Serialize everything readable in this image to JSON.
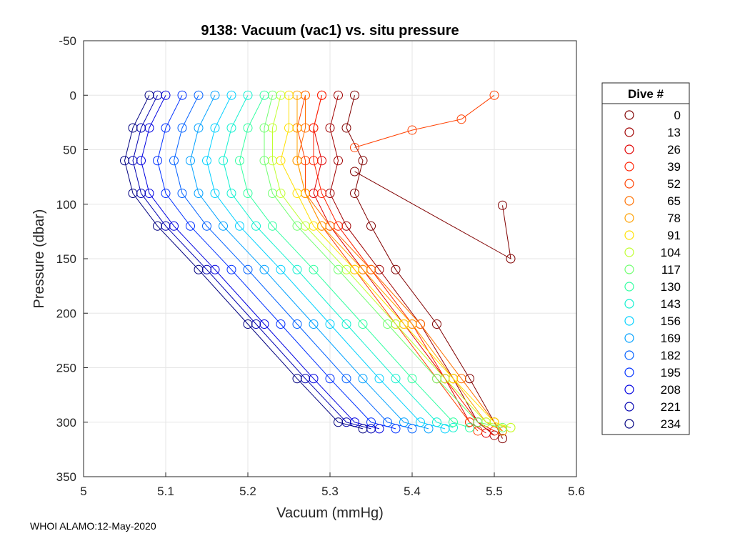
{
  "footer": "WHOI ALAMO:12-May-2020",
  "chart_data": {
    "type": "line",
    "title": "9138: Vacuum (vac1) vs. situ pressure",
    "xlabel": "Vacuum (mmHg)",
    "ylabel": "Pressure (dbar)",
    "xlim": [
      5,
      5.6
    ],
    "ylim": [
      -50,
      350
    ],
    "y_reversed": true,
    "grid": true,
    "marker": "open-circle",
    "xticks": [
      "5",
      "5.1",
      "5.2",
      "5.3",
      "5.4",
      "5.5",
      "5.6"
    ],
    "yticks": [
      "-50",
      "0",
      "50",
      "100",
      "150",
      "200",
      "250",
      "300",
      "350"
    ],
    "legend": {
      "title": "Dive #",
      "location": "right-outside",
      "entries": [
        {
          "label": "0",
          "color": "#800000"
        },
        {
          "label": "13",
          "color": "#a00000"
        },
        {
          "label": "26",
          "color": "#e00000"
        },
        {
          "label": "39",
          "color": "#ff2000"
        },
        {
          "label": "52",
          "color": "#ff4000"
        },
        {
          "label": "65",
          "color": "#ff7000"
        },
        {
          "label": "78",
          "color": "#ffa000"
        },
        {
          "label": "91",
          "color": "#ffe000"
        },
        {
          "label": "104",
          "color": "#c0ff30"
        },
        {
          "label": "117",
          "color": "#70ff70"
        },
        {
          "label": "130",
          "color": "#30ffa0"
        },
        {
          "label": "143",
          "color": "#10f0d0"
        },
        {
          "label": "156",
          "color": "#00d0ff"
        },
        {
          "label": "169",
          "color": "#00a0ff"
        },
        {
          "label": "182",
          "color": "#0060ff"
        },
        {
          "label": "195",
          "color": "#0030ff"
        },
        {
          "label": "208",
          "color": "#0000e0"
        },
        {
          "label": "221",
          "color": "#0000b0"
        },
        {
          "label": "234",
          "color": "#000080"
        }
      ]
    },
    "series": [
      {
        "name": "0",
        "x": [
          5.33,
          5.32,
          5.34,
          5.33,
          5.35,
          5.38,
          5.43,
          5.47,
          5.5,
          5.51
        ],
        "y": [
          0,
          30,
          60,
          90,
          120,
          160,
          210,
          260,
          300,
          315
        ]
      },
      {
        "name": "13",
        "x": [
          5.31,
          5.3,
          5.31,
          5.3,
          5.32,
          5.36,
          5.41,
          5.45,
          5.48,
          5.5
        ],
        "y": [
          0,
          30,
          60,
          90,
          120,
          160,
          210,
          260,
          300,
          312
        ]
      },
      {
        "name": "26",
        "x": [
          5.29,
          5.28,
          5.29,
          5.28,
          5.3,
          5.34,
          5.39,
          5.44,
          5.47,
          5.49
        ],
        "y": [
          0,
          30,
          60,
          90,
          120,
          160,
          210,
          260,
          300,
          310
        ]
      },
      {
        "name": "39",
        "x": [
          5.29,
          5.28,
          5.28,
          5.29,
          5.31,
          5.35,
          5.4,
          5.44,
          5.48,
          5.5
        ],
        "y": [
          0,
          30,
          60,
          90,
          120,
          160,
          210,
          260,
          300,
          308
        ]
      },
      {
        "name": "52",
        "x": [
          5.27,
          5.26,
          5.27,
          5.27,
          5.29,
          5.33,
          5.38,
          5.43,
          5.47,
          5.48
        ],
        "y": [
          0,
          30,
          60,
          90,
          120,
          160,
          210,
          260,
          300,
          308
        ]
      },
      {
        "name": "65",
        "x": [
          5.27,
          5.27,
          5.26,
          5.27,
          5.3,
          5.35,
          5.41,
          5.46,
          5.5,
          5.51
        ],
        "y": [
          0,
          30,
          60,
          90,
          120,
          160,
          210,
          260,
          300,
          308
        ]
      },
      {
        "name": "78",
        "x": [
          5.26,
          5.26,
          5.26,
          5.27,
          5.29,
          5.34,
          5.4,
          5.45,
          5.49,
          5.51
        ],
        "y": [
          0,
          30,
          60,
          90,
          120,
          160,
          210,
          260,
          300,
          308
        ]
      },
      {
        "name": "91",
        "x": [
          5.25,
          5.25,
          5.24,
          5.26,
          5.28,
          5.33,
          5.39,
          5.45,
          5.5,
          5.52
        ],
        "y": [
          0,
          30,
          60,
          90,
          120,
          160,
          210,
          260,
          300,
          305
        ]
      },
      {
        "name": "104",
        "x": [
          5.24,
          5.23,
          5.23,
          5.24,
          5.27,
          5.32,
          5.38,
          5.44,
          5.49,
          5.52
        ],
        "y": [
          0,
          30,
          60,
          90,
          120,
          160,
          210,
          260,
          300,
          305
        ]
      },
      {
        "name": "117",
        "x": [
          5.23,
          5.22,
          5.22,
          5.23,
          5.26,
          5.31,
          5.37,
          5.43,
          5.48,
          5.51
        ],
        "y": [
          0,
          30,
          60,
          90,
          120,
          160,
          210,
          260,
          300,
          305
        ]
      },
      {
        "name": "130",
        "x": [
          5.22,
          5.2,
          5.19,
          5.2,
          5.23,
          5.28,
          5.34,
          5.4,
          5.45,
          5.47
        ],
        "y": [
          0,
          30,
          60,
          90,
          120,
          160,
          210,
          260,
          300,
          305
        ]
      },
      {
        "name": "143",
        "x": [
          5.2,
          5.18,
          5.17,
          5.18,
          5.21,
          5.26,
          5.32,
          5.38,
          5.43,
          5.45
        ],
        "y": [
          0,
          30,
          60,
          90,
          120,
          160,
          210,
          260,
          300,
          305
        ]
      },
      {
        "name": "156",
        "x": [
          5.18,
          5.16,
          5.15,
          5.16,
          5.19,
          5.24,
          5.3,
          5.36,
          5.41,
          5.44
        ],
        "y": [
          0,
          30,
          60,
          90,
          120,
          160,
          210,
          260,
          300,
          306
        ]
      },
      {
        "name": "169",
        "x": [
          5.16,
          5.14,
          5.13,
          5.14,
          5.17,
          5.22,
          5.28,
          5.34,
          5.39,
          5.42
        ],
        "y": [
          0,
          30,
          60,
          90,
          120,
          160,
          210,
          260,
          300,
          306
        ]
      },
      {
        "name": "182",
        "x": [
          5.14,
          5.12,
          5.11,
          5.12,
          5.15,
          5.2,
          5.26,
          5.32,
          5.37,
          5.4
        ],
        "y": [
          0,
          30,
          60,
          90,
          120,
          160,
          210,
          260,
          300,
          306
        ]
      },
      {
        "name": "195",
        "x": [
          5.12,
          5.1,
          5.09,
          5.1,
          5.13,
          5.18,
          5.24,
          5.3,
          5.35,
          5.38
        ],
        "y": [
          0,
          30,
          60,
          90,
          120,
          160,
          210,
          260,
          300,
          306
        ]
      },
      {
        "name": "208",
        "x": [
          5.1,
          5.08,
          5.07,
          5.08,
          5.11,
          5.16,
          5.22,
          5.28,
          5.33,
          5.36
        ],
        "y": [
          0,
          30,
          60,
          90,
          120,
          160,
          210,
          260,
          300,
          306
        ]
      },
      {
        "name": "221",
        "x": [
          5.09,
          5.07,
          5.06,
          5.07,
          5.1,
          5.15,
          5.21,
          5.27,
          5.32,
          5.35
        ],
        "y": [
          0,
          30,
          60,
          90,
          120,
          160,
          210,
          260,
          300,
          306
        ]
      },
      {
        "name": "234",
        "x": [
          5.08,
          5.06,
          5.05,
          5.06,
          5.09,
          5.14,
          5.2,
          5.26,
          5.31,
          5.34
        ],
        "y": [
          0,
          30,
          60,
          90,
          120,
          160,
          210,
          260,
          300,
          306
        ]
      }
    ],
    "annotations": [
      {
        "series": "52",
        "x": [
          5.5,
          5.46,
          5.4,
          5.33
        ],
        "y": [
          0,
          22,
          32,
          48
        ],
        "note": "outlier profile upper-right"
      },
      {
        "series": "0",
        "x": [
          5.51,
          5.52,
          5.33
        ],
        "y": [
          101,
          150,
          70
        ],
        "note": "outlier points near x=5.51"
      }
    ]
  }
}
